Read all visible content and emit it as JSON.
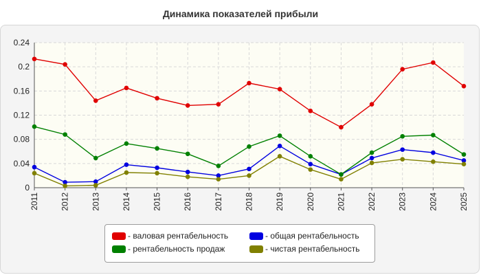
{
  "chart_data": {
    "type": "line",
    "title": "Динамика показателей прибыли",
    "x": [
      "2011",
      "2012",
      "2013",
      "2014",
      "2015",
      "2016",
      "2017",
      "2018",
      "2019",
      "2020",
      "2021",
      "2022",
      "2023",
      "2024",
      "2025"
    ],
    "ylim": [
      0,
      0.24
    ],
    "yticks": [
      "0",
      "0.04",
      "0.08",
      "0.12",
      "0.16",
      "0.2",
      "0.24"
    ],
    "grid": true,
    "legend_position": "bottom",
    "series": [
      {
        "name": "- валовая рентабельность",
        "color": "#e00000",
        "values": [
          0.213,
          0.204,
          0.144,
          0.165,
          0.148,
          0.136,
          0.138,
          0.173,
          0.163,
          0.127,
          0.1,
          0.138,
          0.196,
          0.207,
          0.168
        ]
      },
      {
        "name": "- общая рентабельность",
        "color": "#0000e0",
        "values": [
          0.034,
          0.009,
          0.01,
          0.038,
          0.033,
          0.026,
          0.02,
          0.031,
          0.069,
          0.039,
          0.022,
          0.049,
          0.063,
          0.058,
          0.045
        ]
      },
      {
        "name": "- рентабельность продаж",
        "color": "#008000",
        "values": [
          0.101,
          0.088,
          0.049,
          0.073,
          0.065,
          0.056,
          0.036,
          0.068,
          0.086,
          0.052,
          0.022,
          0.058,
          0.085,
          0.087,
          0.055
        ]
      },
      {
        "name": "- чистая рентабельность",
        "color": "#808000",
        "values": [
          0.024,
          0.003,
          0.004,
          0.025,
          0.024,
          0.018,
          0.014,
          0.02,
          0.052,
          0.03,
          0.014,
          0.041,
          0.047,
          0.043,
          0.039
        ]
      }
    ]
  }
}
